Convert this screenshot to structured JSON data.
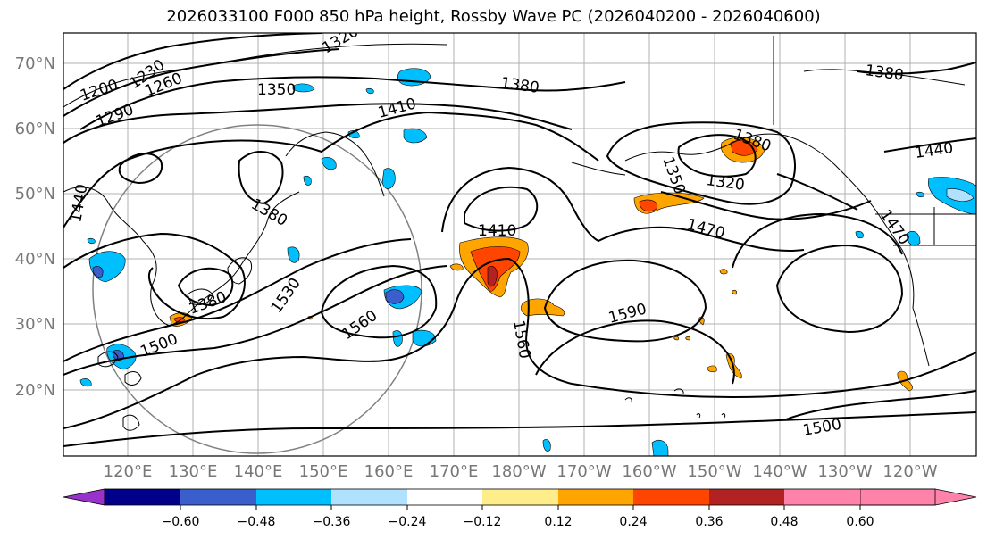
{
  "title": "2026033100 F000 850 hPa height, Rossby Wave PC (2026040200 - 2026040600)",
  "lat_labels": [
    "70°N",
    "60°N",
    "50°N",
    "40°N",
    "30°N",
    "20°N"
  ],
  "lon_labels": [
    "120°E",
    "130°E",
    "140°E",
    "150°E",
    "160°E",
    "170°E",
    "180°W",
    "170°W",
    "160°W",
    "150°W",
    "140°W",
    "130°W",
    "120°W"
  ],
  "contour_labels": [
    "1200",
    "1230",
    "1260",
    "1290",
    "1320",
    "1350",
    "1380",
    "1410",
    "1380",
    "1380",
    "1380",
    "1350",
    "1320",
    "1440",
    "1440",
    "1410",
    "1470",
    "1470",
    "1380",
    "1530",
    "1560",
    "1500",
    "1560",
    "1590",
    "1500"
  ],
  "colorbar": {
    "ticks": [
      "−0.60",
      "−0.48",
      "−0.36",
      "−0.24",
      "−0.12",
      "0.12",
      "0.24",
      "0.36",
      "0.48",
      "0.60"
    ],
    "colors": [
      "#9932CC",
      "#00008B",
      "#3A5FCD",
      "#00BFFF",
      "#B0E2FF",
      "#FFFFFF",
      "#FFEC8B",
      "#FFA500",
      "#FF4500",
      "#B22222",
      "#FF82AB"
    ]
  }
}
